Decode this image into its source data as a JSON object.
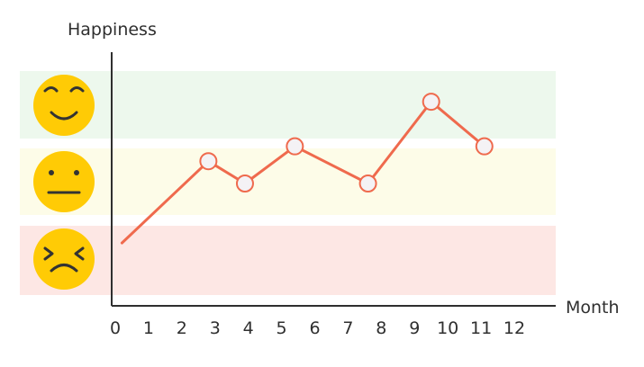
{
  "chart_data": {
    "type": "line",
    "title": "",
    "xlabel": "Month",
    "ylabel": "Happiness",
    "xlim": [
      0,
      12
    ],
    "xticks": [
      0,
      1,
      2,
      3,
      4,
      5,
      6,
      7,
      8,
      9,
      10,
      11,
      12
    ],
    "ylim": [
      0,
      3
    ],
    "grid": false,
    "legend": "none",
    "colors": {
      "line": "#ef6a4d",
      "marker_fill": "#f4f2f5",
      "happy_band": "#edf8ed",
      "neutral_band": "#fdfce8",
      "sad_band": "#fde7e4",
      "face": "#ffcb05",
      "face_features": "#333333"
    },
    "bands": [
      {
        "name": "happy",
        "icon": "smiling-face-icon",
        "range": [
          2,
          3
        ]
      },
      {
        "name": "neutral",
        "icon": "neutral-face-icon",
        "range": [
          1,
          2
        ]
      },
      {
        "name": "unhappy",
        "icon": "frowning-face-icon",
        "range": [
          0,
          1
        ]
      }
    ],
    "series": [
      {
        "x": [
          0.2,
          2.8,
          3.9,
          5.4,
          7.6,
          9.5,
          11.1
        ],
        "y": [
          0.7,
          1.8,
          1.5,
          2.0,
          1.5,
          2.6,
          2.0
        ],
        "marked": [
          false,
          true,
          true,
          true,
          true,
          true,
          true
        ]
      }
    ]
  }
}
